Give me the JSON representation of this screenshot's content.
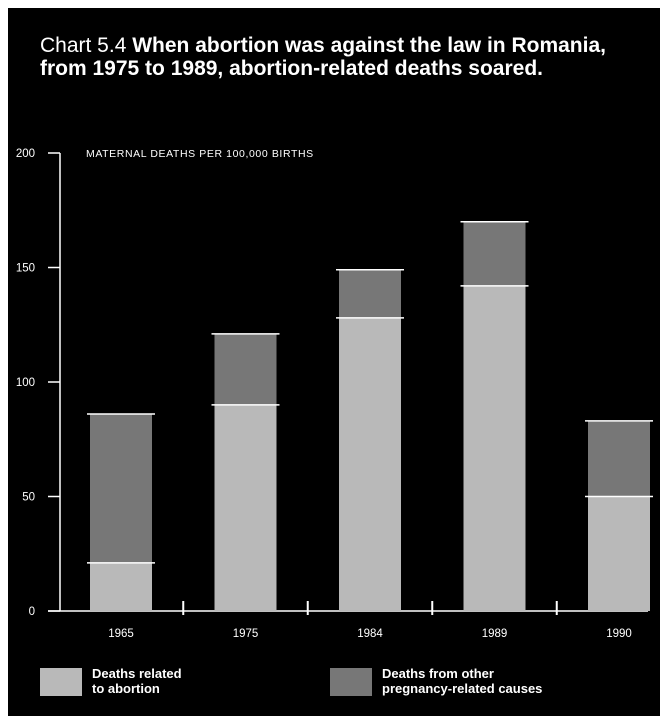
{
  "title_prefix": "Chart 5.4",
  "title_main": "When abortion was against the law in Romania, from 1975 to 1989, abortion-related deaths soared.",
  "chart_data": {
    "type": "bar",
    "stacked": true,
    "title": "Chart 5.4 When abortion was against the law in Romania, from 1975 to 1989, abortion-related deaths soared.",
    "ylabel": "MATERNAL DEATHS PER 100,000 BIRTHS",
    "xlabel": "",
    "categories": [
      "1965",
      "1975",
      "1984",
      "1989",
      "1990"
    ],
    "series": [
      {
        "name": "Deaths related to abortion",
        "values": [
          21,
          90,
          128,
          142,
          50
        ],
        "color": "#b9b9b9"
      },
      {
        "name": "Deaths from other pregnancy-related causes",
        "values": [
          65,
          31,
          21,
          28,
          33
        ],
        "color": "#777777"
      }
    ],
    "ylim": [
      0,
      200
    ],
    "yticks": [
      0,
      50,
      100,
      150,
      200
    ],
    "grid": false,
    "legend_position": "bottom"
  },
  "legend": [
    {
      "label": "Deaths related\nto abortion",
      "color": "#b9b9b9"
    },
    {
      "label": "Deaths from other\npregnancy-related causes",
      "color": "#777777"
    }
  ]
}
